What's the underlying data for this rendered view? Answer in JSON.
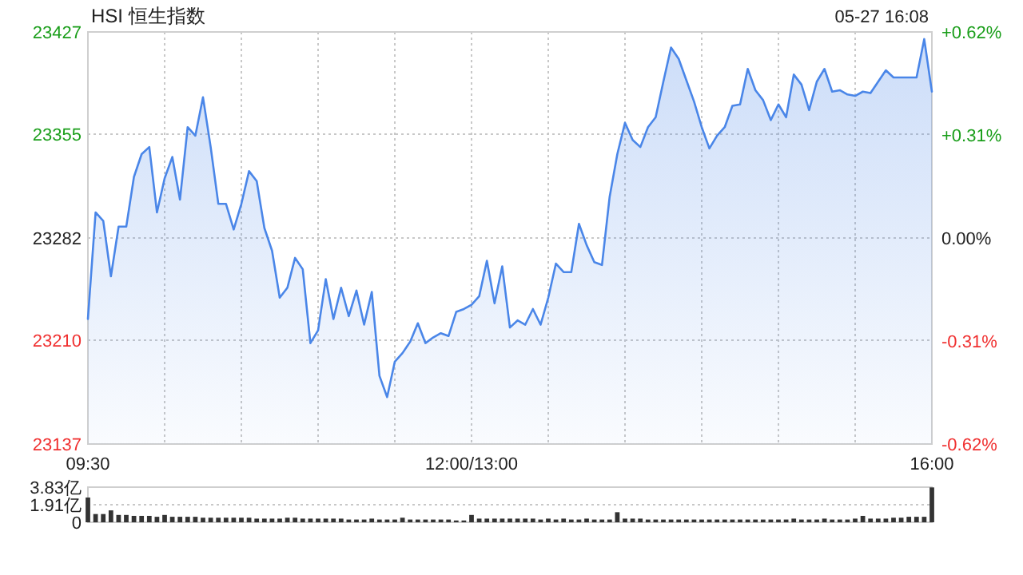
{
  "chart_data": [
    {
      "type": "area",
      "title": "HSI 恒生指数",
      "annotations": [
        "05-27 16:08"
      ],
      "grid": true,
      "categories": [
        "09:30",
        null,
        null,
        null,
        null,
        null,
        null,
        null,
        null,
        null,
        null,
        null,
        null,
        null,
        null,
        null,
        null,
        null,
        null,
        null,
        null,
        null,
        null,
        null,
        null,
        null,
        null,
        null,
        null,
        null,
        null,
        null,
        null,
        null,
        null,
        null,
        null,
        null,
        null,
        null,
        null,
        null,
        null,
        null,
        null,
        null,
        null,
        null,
        null,
        null,
        "12:00/13:00",
        null,
        null,
        null,
        null,
        null,
        null,
        null,
        null,
        null,
        null,
        null,
        null,
        null,
        null,
        null,
        null,
        null,
        null,
        null,
        null,
        null,
        null,
        null,
        null,
        null,
        null,
        null,
        null,
        null,
        null,
        null,
        null,
        null,
        null,
        null,
        null,
        null,
        null,
        null,
        null,
        null,
        null,
        null,
        null,
        null,
        null,
        null,
        null,
        null,
        null,
        null,
        null,
        null,
        null,
        null,
        null,
        null,
        null,
        null,
        "16:00"
      ],
      "ylim": [
        23137,
        23427
      ],
      "yticks": [
        23137,
        23210,
        23282,
        23355,
        23427
      ],
      "y2lim": [
        -0.62,
        0.62
      ],
      "y2ticks": [
        {
          "value": -0.62,
          "label": "-0.62%"
        },
        {
          "value": -0.31,
          "label": "-0.31%"
        },
        {
          "value": 0,
          "label": "0.00%"
        },
        {
          "value": 0.31,
          "label": "+0.31%"
        },
        {
          "value": 0.62,
          "label": "+0.62%"
        }
      ],
      "series": [
        {
          "color": "#4a86e8",
          "values": [
            23225,
            23300,
            23294,
            23255,
            23290,
            23290,
            23325,
            23341,
            23346,
            23300,
            23324,
            23339,
            23309,
            23360,
            23354,
            23381,
            23346,
            23306,
            23306,
            23288,
            23306,
            23329,
            23322,
            23289,
            23273,
            23240,
            23247,
            23268,
            23260,
            23208,
            23217,
            23253,
            23225,
            23247,
            23227,
            23245,
            23221,
            23244,
            23185,
            23170,
            23195,
            23201,
            23209,
            23222,
            23208,
            23212,
            23215,
            23213,
            23230,
            23232,
            23235,
            23241,
            23266,
            23236,
            23262,
            23219,
            23224,
            23221,
            23232,
            23221,
            23240,
            23264,
            23258,
            23258,
            23292,
            23277,
            23265,
            23263,
            23311,
            23341,
            23363,
            23351,
            23346,
            23360,
            23367,
            23392,
            23416,
            23408,
            23393,
            23378,
            23360,
            23345,
            23354,
            23360,
            23375,
            23376,
            23401,
            23386,
            23379,
            23365,
            23376,
            23367,
            23397,
            23390,
            23372,
            23392,
            23401,
            23385,
            23386,
            23383,
            23382,
            23385,
            23384,
            23392,
            23400,
            23395,
            23395,
            23395,
            23395,
            23422,
            23385
          ]
        }
      ]
    },
    {
      "type": "bar",
      "grid": "y",
      "tick_labels": "y",
      "categories": [
        null,
        null,
        null,
        null,
        null,
        null,
        null,
        null,
        null,
        null,
        null,
        null,
        null,
        null,
        null,
        null,
        null,
        null,
        null,
        null,
        null,
        null,
        null,
        null,
        null,
        null,
        null,
        null,
        null,
        null,
        null,
        null,
        null,
        null,
        null,
        null,
        null,
        null,
        null,
        null,
        null,
        null,
        null,
        null,
        null,
        null,
        null,
        null,
        null,
        null,
        null,
        null,
        null,
        null,
        null,
        null,
        null,
        null,
        null,
        null,
        null,
        null,
        null,
        null,
        null,
        null,
        null,
        null,
        null,
        null,
        null,
        null,
        null,
        null,
        null,
        null,
        null,
        null,
        null,
        null,
        null,
        null,
        null,
        null,
        null,
        null,
        null,
        null,
        null,
        null,
        null,
        null,
        null,
        null,
        null,
        null,
        null,
        null,
        null,
        null,
        null,
        null,
        null,
        null,
        null,
        null,
        null,
        null,
        null,
        null,
        null
      ],
      "ylim": [
        0,
        3.83
      ],
      "yticks": [
        0,
        {
          "value": 1.91,
          "label": "1.91亿"
        },
        {
          "value": 3.83,
          "label": "3.83亿"
        }
      ],
      "series": [
        {
          "color": "#333333",
          "values": [
            2.7,
            0.9,
            0.9,
            1.3,
            0.8,
            0.8,
            0.7,
            0.7,
            0.7,
            0.6,
            0.8,
            0.6,
            0.6,
            0.6,
            0.6,
            0.5,
            0.5,
            0.5,
            0.5,
            0.5,
            0.5,
            0.5,
            0.4,
            0.4,
            0.4,
            0.4,
            0.5,
            0.5,
            0.4,
            0.4,
            0.4,
            0.4,
            0.4,
            0.4,
            0.3,
            0.3,
            0.3,
            0.4,
            0.3,
            0.3,
            0.3,
            0.5,
            0.3,
            0.3,
            0.3,
            0.3,
            0.3,
            0.3,
            0.2,
            0.2,
            0.8,
            0.4,
            0.4,
            0.4,
            0.4,
            0.4,
            0.4,
            0.4,
            0.4,
            0.3,
            0.4,
            0.3,
            0.4,
            0.3,
            0.3,
            0.4,
            0.3,
            0.3,
            0.3,
            1.1,
            0.4,
            0.4,
            0.4,
            0.3,
            0.3,
            0.3,
            0.3,
            0.3,
            0.3,
            0.3,
            0.3,
            0.3,
            0.3,
            0.3,
            0.3,
            0.3,
            0.3,
            0.3,
            0.3,
            0.3,
            0.3,
            0.3,
            0.4,
            0.3,
            0.3,
            0.3,
            0.4,
            0.3,
            0.3,
            0.3,
            0.4,
            0.7,
            0.4,
            0.4,
            0.4,
            0.5,
            0.5,
            0.6,
            0.6,
            0.6,
            3.8
          ]
        }
      ]
    }
  ]
}
